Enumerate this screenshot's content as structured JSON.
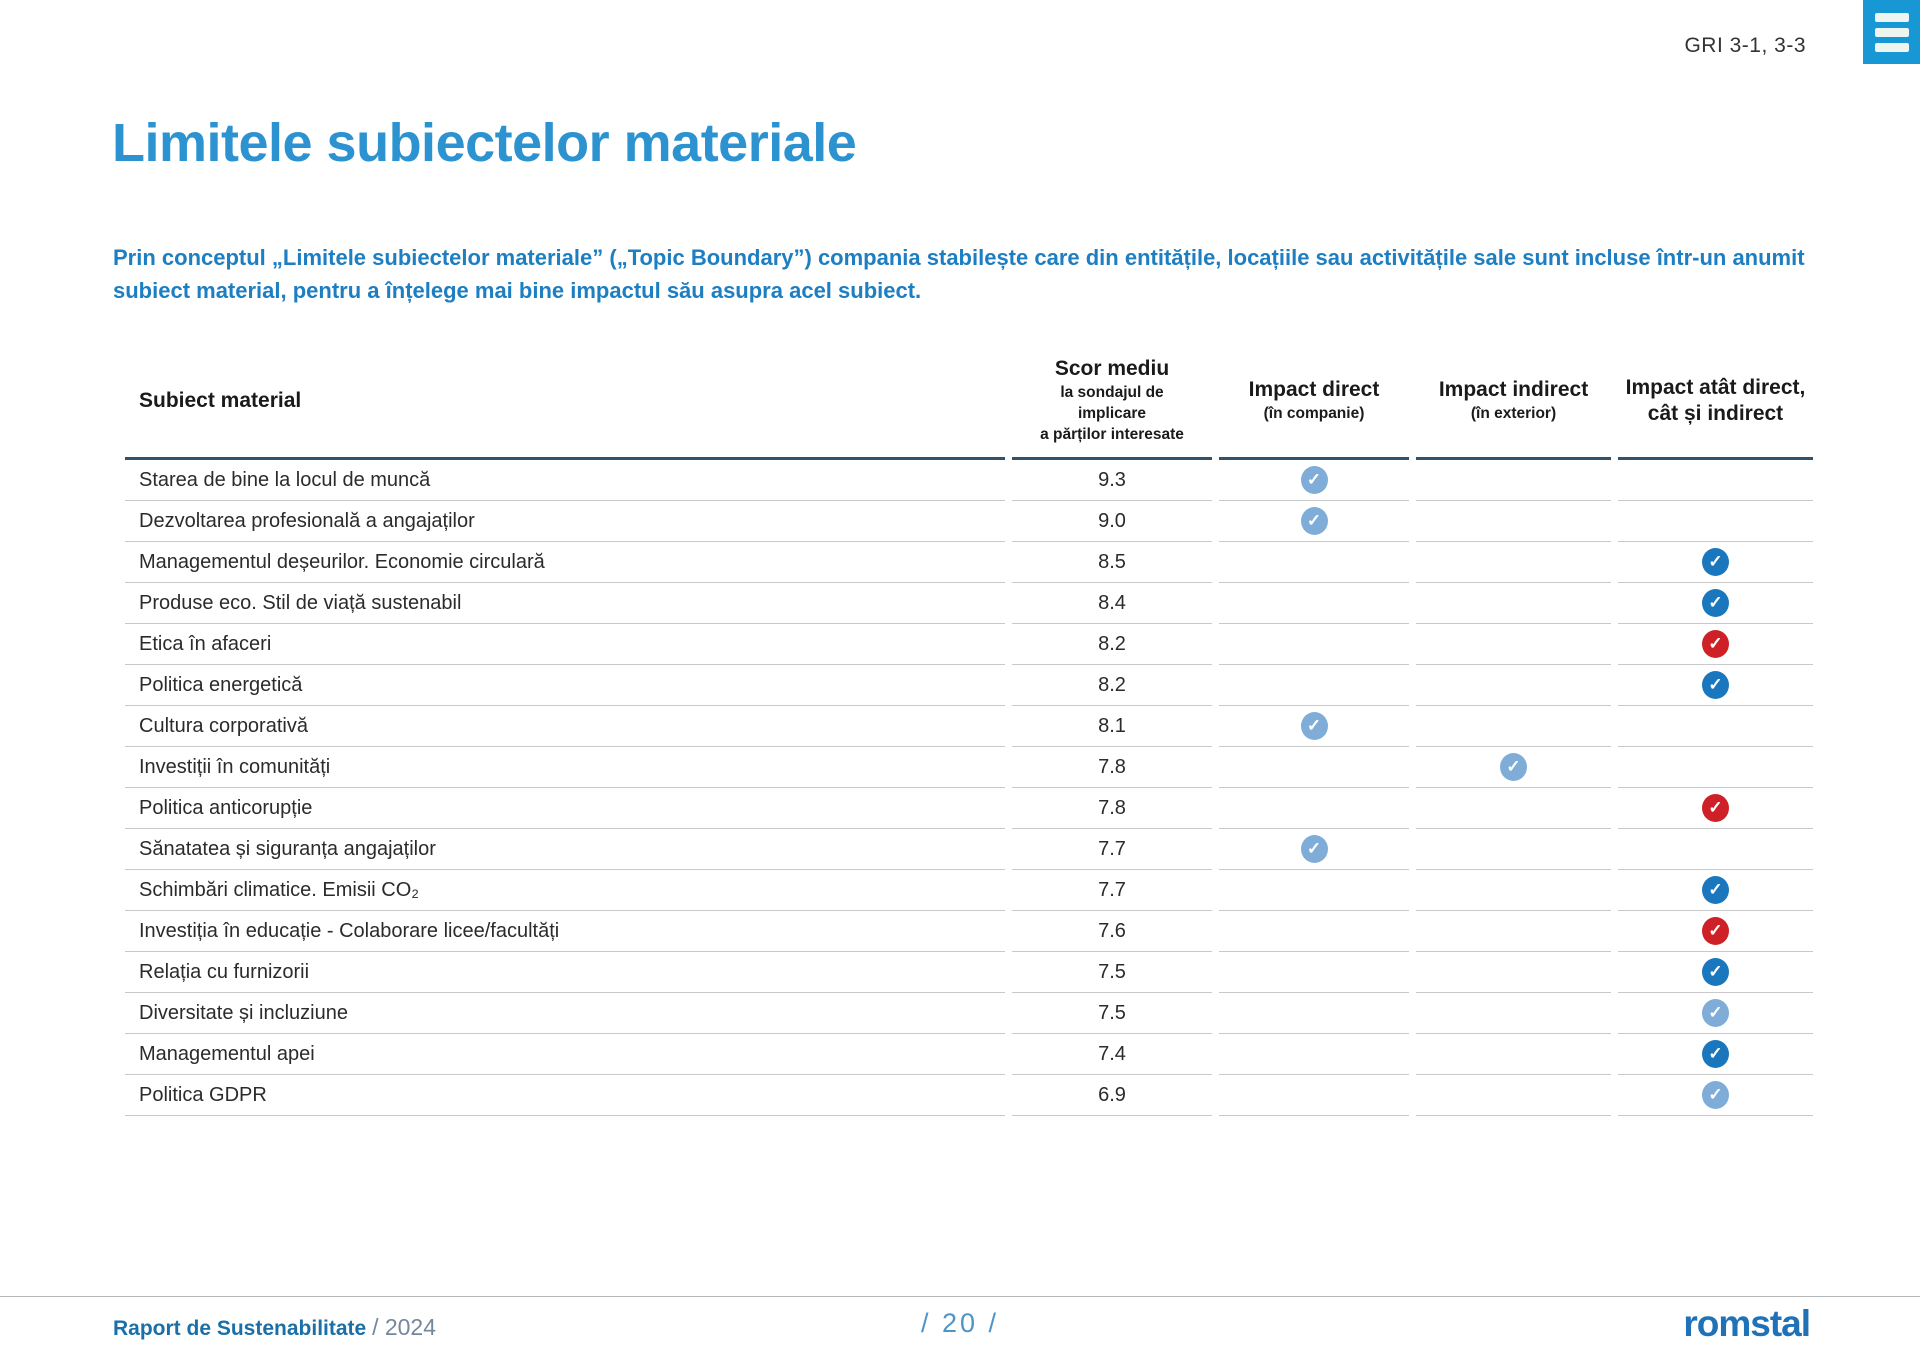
{
  "colors": {
    "accent_blue": "#2C93D0",
    "intro_blue": "#1D7EC2",
    "menu_blue": "#1798D5",
    "header_rule": "#31526A",
    "logo_blue": "#1F72B8",
    "check_light": "#7FADD8",
    "check_dark": "#1B77BD",
    "check_red": "#CE2127"
  },
  "header": {
    "gri_reference": "GRI 3-1, 3-3",
    "menu_icon": "hamburger-icon"
  },
  "page": {
    "title": "Limitele subiectelor materiale",
    "intro": "Prin conceptul „Limitele subiectelor materiale” („Topic Boundary”) compania stabilește care din entitățile, locațiile sau activitățile sale sunt incluse într-un anumit subiect material, pentru a înțelege mai bine impactul său asupra acel subiect."
  },
  "table": {
    "columns": {
      "subject": "Subiect material",
      "score_title": "Scor mediu",
      "score_sub": [
        "la sondajul de",
        "implicare",
        "a părților interesate"
      ],
      "direct_title": "Impact direct",
      "direct_sub": "(în companie)",
      "indirect_title": "Impact indirect",
      "indirect_sub": "(în exterior)",
      "both_title_line1": "Impact atât direct,",
      "both_title_line2": "cât și indirect"
    },
    "rows": [
      {
        "label": "Starea de bine la locul de muncă",
        "score": "9.3",
        "direct": "light",
        "indirect": null,
        "both": null
      },
      {
        "label": "Dezvoltarea profesională a angajaților",
        "score": "9.0",
        "direct": "light",
        "indirect": null,
        "both": null
      },
      {
        "label": "Managementul deșeurilor. Economie circulară",
        "score": "8.5",
        "direct": null,
        "indirect": null,
        "both": "dark"
      },
      {
        "label": "Produse eco. Stil de viață sustenabil",
        "score": "8.4",
        "direct": null,
        "indirect": null,
        "both": "dark"
      },
      {
        "label": "Etica în afaceri",
        "score": "8.2",
        "direct": null,
        "indirect": null,
        "both": "red"
      },
      {
        "label": "Politica energetică",
        "score": "8.2",
        "direct": null,
        "indirect": null,
        "both": "dark"
      },
      {
        "label": "Cultura corporativă",
        "score": "8.1",
        "direct": "light",
        "indirect": null,
        "both": null
      },
      {
        "label": "Investiții în comunități",
        "score": "7.8",
        "direct": null,
        "indirect": "light",
        "both": null
      },
      {
        "label": "Politica anticorupție",
        "score": "7.8",
        "direct": null,
        "indirect": null,
        "both": "red"
      },
      {
        "label": "Sănatatea și siguranța angajaților",
        "score": "7.7",
        "direct": "light",
        "indirect": null,
        "both": null
      },
      {
        "label": "Schimbări climatice. Emisii CO₂",
        "score": "7.7",
        "direct": null,
        "indirect": null,
        "both": "dark"
      },
      {
        "label": "Investiția în educație - Colaborare licee/facultăți",
        "score": "7.6",
        "direct": null,
        "indirect": null,
        "both": "red"
      },
      {
        "label": "Relația cu furnizorii",
        "score": "7.5",
        "direct": null,
        "indirect": null,
        "both": "dark"
      },
      {
        "label": "Diversitate și incluziune",
        "score": "7.5",
        "direct": null,
        "indirect": null,
        "both": "light"
      },
      {
        "label": "Managementul apei",
        "score": "7.4",
        "direct": null,
        "indirect": null,
        "both": "dark"
      },
      {
        "label": "Politica GDPR",
        "score": "6.9",
        "direct": null,
        "indirect": null,
        "both": "light"
      }
    ]
  },
  "footer": {
    "report_name": "Raport de Sustenabilitate",
    "report_year": "/ 2024",
    "page_number": "/ 20 /",
    "logo_text": "romstal"
  }
}
